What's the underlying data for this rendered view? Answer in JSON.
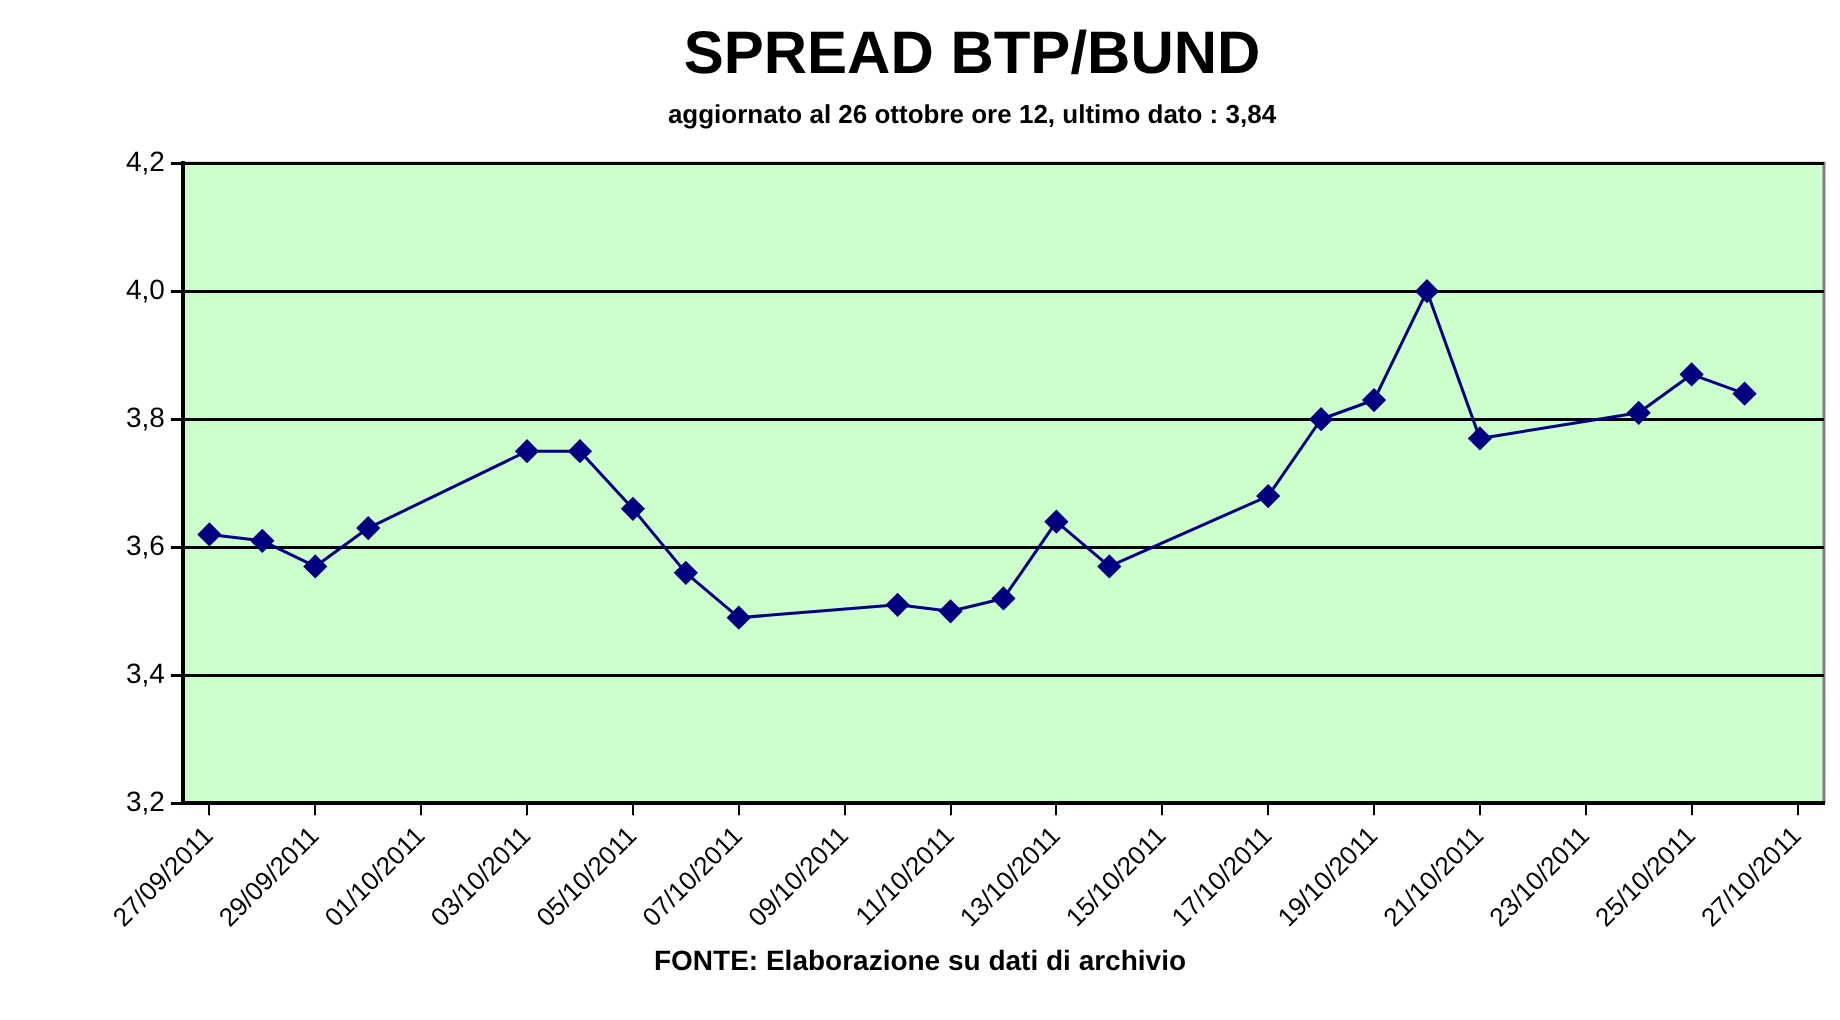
{
  "chart_data": {
    "type": "line",
    "title": "SPREAD BTP/BUND",
    "subtitle": "aggiornato al 26 ottobre ore 12, ultimo dato : 3,84",
    "annotations": [
      "FONTE: Elaborazione su dati di archivio"
    ],
    "x": [
      "2011-09-27",
      "2011-09-28",
      "2011-09-29",
      "2011-09-30",
      "2011-10-03",
      "2011-10-04",
      "2011-10-05",
      "2011-10-06",
      "2011-10-07",
      "2011-10-10",
      "2011-10-11",
      "2011-10-12",
      "2011-10-13",
      "2011-10-14",
      "2011-10-17",
      "2011-10-18",
      "2011-10-19",
      "2011-10-20",
      "2011-10-21",
      "2011-10-24",
      "2011-10-25",
      "2011-10-26"
    ],
    "series": [
      {
        "color": "#000080",
        "values": [
          3.62,
          3.61,
          3.57,
          3.63,
          3.75,
          3.75,
          3.66,
          3.56,
          3.49,
          3.51,
          3.5,
          3.52,
          3.64,
          3.57,
          3.68,
          3.8,
          3.83,
          4.0,
          3.77,
          3.81,
          3.87,
          3.84
        ]
      }
    ],
    "xlim": [
      "2011-09-26T12:00",
      "2011-10-27T12:00"
    ],
    "xticks": [
      {
        "value": "2011-09-27",
        "label": "27/09/2011"
      },
      {
        "value": "2011-09-29",
        "label": "29/09/2011"
      },
      {
        "value": "2011-10-01",
        "label": "01/10/2011"
      },
      {
        "value": "2011-10-03",
        "label": "03/10/2011"
      },
      {
        "value": "2011-10-05",
        "label": "05/10/2011"
      },
      {
        "value": "2011-10-07",
        "label": "07/10/2011"
      },
      {
        "value": "2011-10-09",
        "label": "09/10/2011"
      },
      {
        "value": "2011-10-11",
        "label": "11/10/2011"
      },
      {
        "value": "2011-10-13",
        "label": "13/10/2011"
      },
      {
        "value": "2011-10-15",
        "label": "15/10/2011"
      },
      {
        "value": "2011-10-17",
        "label": "17/10/2011"
      },
      {
        "value": "2011-10-19",
        "label": "19/10/2011"
      },
      {
        "value": "2011-10-21",
        "label": "21/10/2011"
      },
      {
        "value": "2011-10-23",
        "label": "23/10/2011"
      },
      {
        "value": "2011-10-25",
        "label": "25/10/2011"
      },
      {
        "value": "2011-10-27",
        "label": "27/10/2011"
      }
    ],
    "ylim": [
      3.2,
      4.2
    ],
    "yticks": [
      {
        "value": 3.2,
        "label": "3,2"
      },
      {
        "value": 3.4,
        "label": "3,4"
      },
      {
        "value": 3.6,
        "label": "3,6"
      },
      {
        "value": 3.8,
        "label": "3,8"
      },
      {
        "value": 4.0,
        "label": "4,0"
      },
      {
        "value": 4.2,
        "label": "4,2"
      }
    ],
    "grid": "y",
    "legend": false,
    "marker": "diamond",
    "line_style": "solid"
  }
}
